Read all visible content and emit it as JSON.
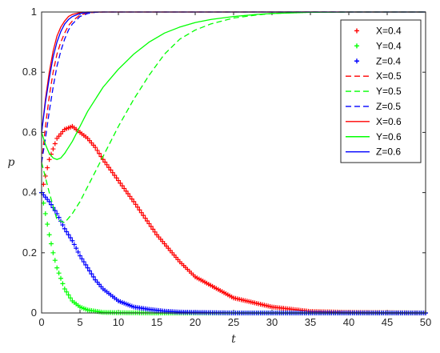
{
  "chart_data": {
    "type": "line",
    "xlabel": "t",
    "ylabel": "p",
    "xlim": [
      0,
      50
    ],
    "ylim": [
      0,
      1
    ],
    "xticks": [
      0,
      5,
      10,
      15,
      20,
      25,
      30,
      35,
      40,
      45,
      50
    ],
    "xtick_labels": [
      "0",
      "5",
      "10",
      "15",
      "20",
      "25",
      "30",
      "35",
      "40",
      "45",
      "50"
    ],
    "yticks": [
      0,
      0.2,
      0.4,
      0.6,
      0.8,
      1
    ],
    "ytick_labels": [
      "0",
      "0.2",
      "0.4",
      "0.6",
      "0.8",
      "1"
    ],
    "grid": false,
    "legend_position": "top-right",
    "series": [
      {
        "name": "X=0.4",
        "color": "#ff0000",
        "style": "markers",
        "x": [
          0,
          1,
          2,
          3,
          4,
          5,
          6,
          7,
          8,
          10,
          12,
          15,
          18,
          20,
          25,
          30,
          35,
          40,
          45,
          50
        ],
        "y": [
          0.4,
          0.51,
          0.58,
          0.61,
          0.62,
          0.6,
          0.58,
          0.55,
          0.51,
          0.44,
          0.37,
          0.26,
          0.17,
          0.12,
          0.05,
          0.02,
          0.005,
          0.002,
          0.001,
          0.0
        ]
      },
      {
        "name": "Y=0.4",
        "color": "#00ff00",
        "style": "markers",
        "x": [
          0,
          0.5,
          1,
          1.5,
          2,
          3,
          4,
          5,
          6,
          8,
          10,
          15,
          20,
          30,
          40,
          50
        ],
        "y": [
          0.4,
          0.33,
          0.26,
          0.2,
          0.15,
          0.08,
          0.04,
          0.02,
          0.01,
          0.002,
          0.001,
          0.0,
          0.0,
          0.0,
          0.0,
          0.0
        ]
      },
      {
        "name": "Z=0.4",
        "color": "#0000ff",
        "style": "markers",
        "x": [
          0,
          1,
          2,
          3,
          4,
          5,
          6,
          7,
          8,
          10,
          12,
          14,
          16,
          18,
          20,
          25,
          30,
          40,
          50
        ],
        "y": [
          0.4,
          0.37,
          0.33,
          0.28,
          0.24,
          0.19,
          0.15,
          0.11,
          0.08,
          0.04,
          0.02,
          0.012,
          0.006,
          0.003,
          0.002,
          0.0,
          0.0,
          0.0,
          0.0
        ]
      },
      {
        "name": "X=0.5",
        "color": "#ff0000",
        "style": "dashed",
        "x": [
          0,
          0.5,
          1,
          1.5,
          2,
          2.5,
          3,
          3.5,
          4,
          5,
          6,
          7,
          8,
          10,
          50
        ],
        "y": [
          0.5,
          0.62,
          0.72,
          0.8,
          0.86,
          0.9,
          0.93,
          0.955,
          0.97,
          0.99,
          0.997,
          0.999,
          1.0,
          1.0,
          1.0
        ]
      },
      {
        "name": "Y=0.5",
        "color": "#00ff00",
        "style": "dashed",
        "x": [
          0,
          1,
          2,
          3,
          4,
          5,
          6,
          8,
          10,
          12,
          14,
          16,
          18,
          20,
          22,
          25,
          28,
          30,
          35,
          40,
          50
        ],
        "y": [
          0.5,
          0.4,
          0.31,
          0.3,
          0.33,
          0.37,
          0.42,
          0.52,
          0.62,
          0.71,
          0.79,
          0.86,
          0.91,
          0.94,
          0.96,
          0.98,
          0.99,
          0.995,
          1.0,
          1.0,
          1.0
        ]
      },
      {
        "name": "Z=0.5",
        "color": "#0000ff",
        "style": "dashed",
        "x": [
          0,
          0.5,
          1,
          1.5,
          2,
          2.5,
          3,
          3.5,
          4,
          5,
          6,
          7,
          8,
          10,
          50
        ],
        "y": [
          0.5,
          0.58,
          0.67,
          0.75,
          0.82,
          0.87,
          0.91,
          0.94,
          0.96,
          0.985,
          0.995,
          0.999,
          1.0,
          1.0,
          1.0
        ]
      },
      {
        "name": "X=0.6",
        "color": "#ff0000",
        "style": "solid",
        "x": [
          0,
          0.5,
          1,
          1.5,
          2,
          2.5,
          3,
          3.5,
          4,
          5,
          6,
          7,
          50
        ],
        "y": [
          0.6,
          0.71,
          0.8,
          0.87,
          0.92,
          0.95,
          0.97,
          0.985,
          0.992,
          0.998,
          1.0,
          1.0,
          1.0
        ]
      },
      {
        "name": "Y=0.6",
        "color": "#00ff00",
        "style": "solid",
        "x": [
          0,
          0.5,
          1,
          1.5,
          2,
          2.5,
          3,
          4,
          5,
          6,
          8,
          10,
          12,
          14,
          16,
          18,
          20,
          22,
          25,
          28,
          30,
          35,
          40,
          50
        ],
        "y": [
          0.6,
          0.56,
          0.53,
          0.515,
          0.51,
          0.515,
          0.53,
          0.57,
          0.62,
          0.67,
          0.75,
          0.81,
          0.86,
          0.9,
          0.93,
          0.95,
          0.965,
          0.975,
          0.985,
          0.992,
          0.995,
          0.999,
          1.0,
          1.0
        ]
      },
      {
        "name": "Z=0.6",
        "color": "#0000ff",
        "style": "solid",
        "x": [
          0,
          0.5,
          1,
          1.5,
          2,
          2.5,
          3,
          3.5,
          4,
          5,
          6,
          7,
          50
        ],
        "y": [
          0.6,
          0.7,
          0.78,
          0.85,
          0.9,
          0.935,
          0.96,
          0.975,
          0.985,
          0.995,
          0.999,
          1.0,
          1.0
        ]
      }
    ]
  }
}
